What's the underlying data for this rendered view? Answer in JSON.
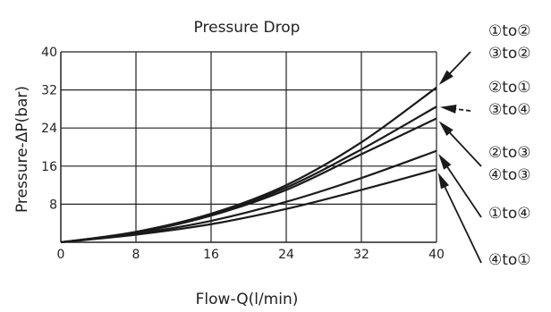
{
  "chart_data": {
    "type": "line",
    "title": "Pressure Drop",
    "xlabel": "Flow-Q(l/min)",
    "ylabel": "Pressure-ΔP(bar)",
    "xlim": [
      0,
      40
    ],
    "ylim": [
      0,
      40
    ],
    "x_ticks": [
      "0",
      "8",
      "16",
      "24",
      "32",
      "40"
    ],
    "y_ticks": [
      "8",
      "16",
      "24",
      "32",
      "40"
    ],
    "grid": true,
    "x": [
      0,
      8,
      16,
      24,
      32,
      40
    ],
    "series": [
      {
        "name_lines": [
          "①to②",
          "③to②"
        ],
        "values": [
          0,
          2.2,
          6,
          12,
          21,
          32.5
        ]
      },
      {
        "name_lines": [
          "②to①",
          "③to④"
        ],
        "values": [
          0,
          2.1,
          5.8,
          11.5,
          19.5,
          28.5
        ]
      },
      {
        "name_lines": [
          "②to③",
          "④to③"
        ],
        "values": [
          0,
          2,
          5.6,
          11,
          18.5,
          26
        ]
      },
      {
        "name_lines": [
          "①to④"
        ],
        "values": [
          0,
          1.8,
          4.5,
          8.5,
          13.5,
          19.2
        ]
      },
      {
        "name_lines": [
          "④to①"
        ],
        "values": [
          0,
          1.6,
          3.8,
          7,
          11,
          15.3
        ]
      }
    ],
    "legend_placement": "right, with arrows pointing to curve ends",
    "colors": {
      "line": "#1a1a1a",
      "grid": "#222222",
      "text": "#222222"
    }
  }
}
